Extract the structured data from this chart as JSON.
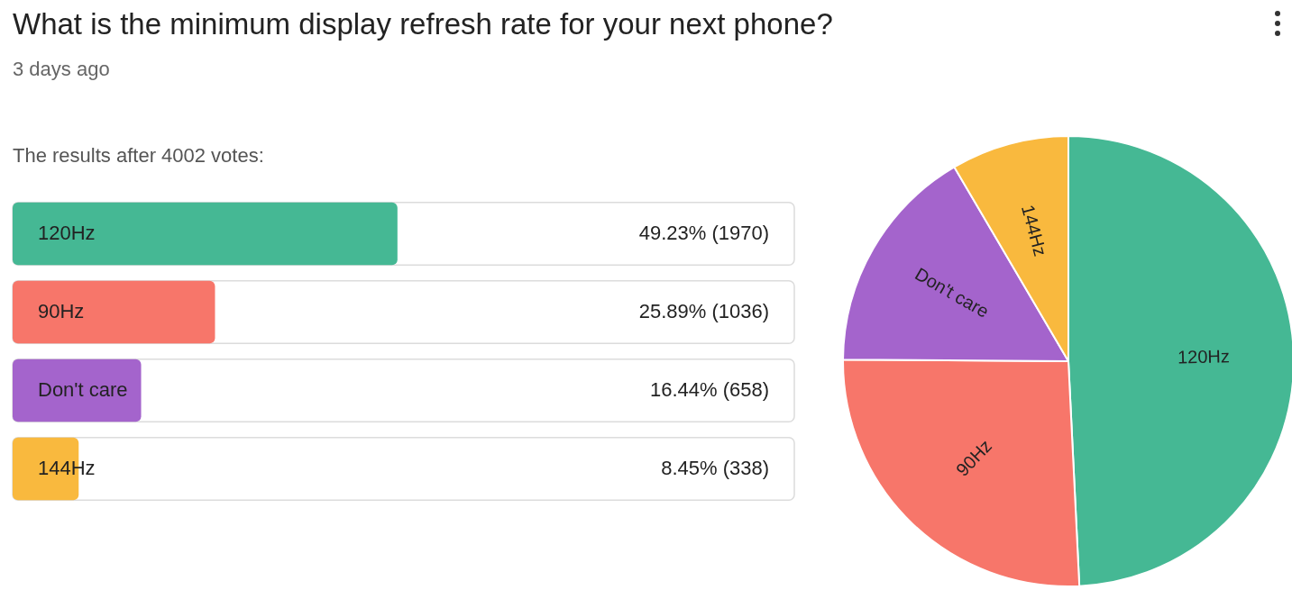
{
  "chart_data": [
    {
      "type": "bar",
      "orientation": "horizontal",
      "title": "What is the minimum display refresh rate for your next phone?",
      "subtitle": "3 days ago",
      "annotations": [
        "The results after 4002 votes:"
      ],
      "categories": [
        "120Hz",
        "90Hz",
        "Don't care",
        "144Hz"
      ],
      "values": [
        49.23,
        25.89,
        16.44,
        8.45
      ],
      "colors": [
        "#45b894",
        "#f7766a",
        "#a464cc",
        "#f9b93e"
      ],
      "value_labels": [
        "49.23% (1970)",
        "25.89% (1036)",
        "16.44% (658)",
        "8.45% (338)"
      ],
      "xlim": [
        0,
        100
      ],
      "tick_labels": false
    },
    {
      "type": "pie",
      "categories": [
        "120Hz",
        "90Hz",
        "Don't care",
        "144Hz"
      ],
      "values": [
        49.23,
        25.89,
        16.44,
        8.45
      ],
      "colors": [
        "#45b894",
        "#f7766a",
        "#a464cc",
        "#f9b93e"
      ]
    }
  ]
}
